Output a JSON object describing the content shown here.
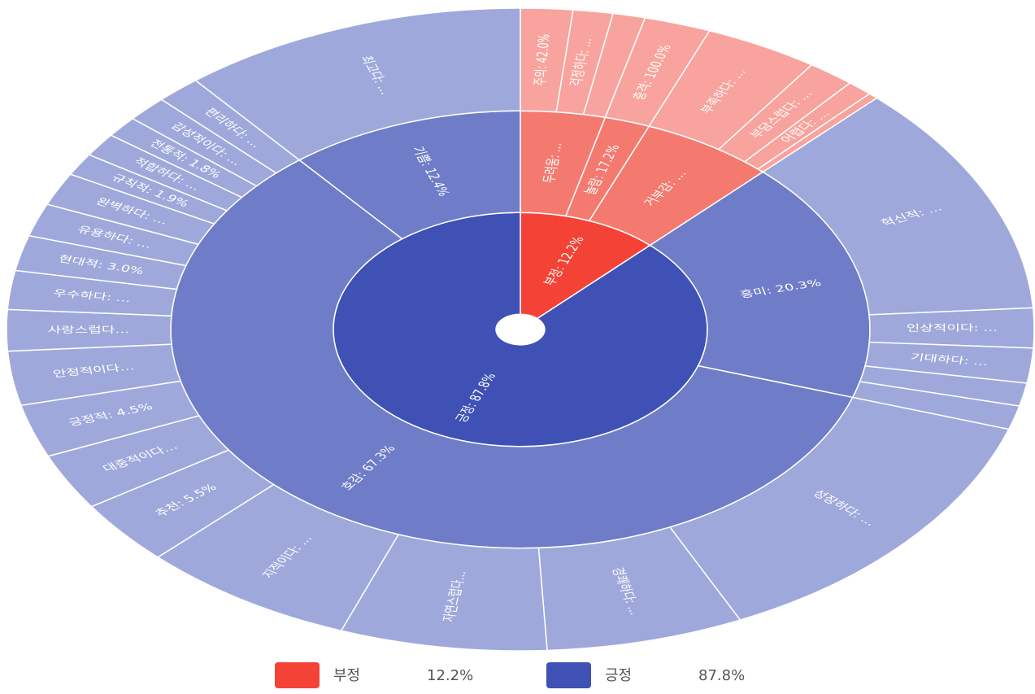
{
  "chart_data": {
    "type": "sunburst",
    "nodes": [
      {
        "name": "부정",
        "value": 12.2,
        "label": "부정: 12.2%",
        "value_label": "12.2%",
        "colors": [
          "#f44336",
          "#f47a70",
          "#f8a39d"
        ],
        "children": [
          {
            "value": 32,
            "label": "두려움: …",
            "children": [
              {
                "value": 42.0,
                "label": "주의: 42.0%"
              },
              {
                "value": 32,
                "label": "걱정하다: …"
              },
              {
                "value": 26,
                "label": null
              }
            ]
          },
          {
            "value": 17.2,
            "label": "놀람: 17.2%",
            "children": [
              {
                "value": 100.0,
                "label": "충격: 100.0%"
              }
            ]
          },
          {
            "value": 50.8,
            "label": "거부감: …",
            "children": [
              {
                "value": 58,
                "label": "부족하다: …"
              },
              {
                "value": 24,
                "label": "부담스럽다: …"
              },
              {
                "value": 13,
                "label": "어렵다: …"
              },
              {
                "value": 5,
                "label": null
              }
            ]
          }
        ]
      },
      {
        "name": "긍정",
        "value": 87.8,
        "label": "긍정: 87.8%",
        "value_label": "87.8%",
        "colors": [
          "#3f51b5",
          "#6f7cc8",
          "#9fa8da"
        ],
        "children": [
          {
            "value": 20.3,
            "label": "흥미: 20.3%",
            "children": [
              {
                "value": 65.8,
                "label": "혁신적: …"
              },
              {
                "value": 11.2,
                "label": "인상적이다: …"
              },
              {
                "value": 9.8,
                "label": "기대하다: …"
              },
              {
                "value": 6.5,
                "label": null
              },
              {
                "value": 6.7,
                "label": null
              }
            ]
          },
          {
            "value": 67.3,
            "label": "호감: 67.3%",
            "children": [
              {
                "value": 21.9,
                "label": "성장하다: …"
              },
              {
                "value": 10.5,
                "label": "경쾌하다: …"
              },
              {
                "value": 11.0,
                "label": "자연스럽다…"
              },
              {
                "value": 11.5,
                "label": "지적이다: …"
              },
              {
                "value": 5.5,
                "label": "추천: 5.5%"
              },
              {
                "value": 4.8,
                "label": "대중적이다…"
              },
              {
                "value": 4.5,
                "label": "긍정적: 4.5%"
              },
              {
                "value": 4.6,
                "label": "안정적이다…"
              },
              {
                "value": 3.5,
                "label": "사랑스럽다…"
              },
              {
                "value": 3.3,
                "label": "우수하다: …"
              },
              {
                "value": 3.0,
                "label": "현대적: 3.0%"
              },
              {
                "value": 2.8,
                "label": "유용하다: …"
              },
              {
                "value": 2.8,
                "label": "완벽하다: …"
              },
              {
                "value": 1.9,
                "label": "규칙적: 1.9%"
              },
              {
                "value": 2.0,
                "label": "적합하다: …"
              },
              {
                "value": 1.8,
                "label": "전통적: 1.8%"
              },
              {
                "value": 2.2,
                "label": "감성적이다: …"
              },
              {
                "value": 2.4,
                "label": "편리하다: …"
              }
            ]
          },
          {
            "value": 12.4,
            "label": "기쁨: 12.4%",
            "children": [
              {
                "value": 100,
                "label": "최고다: …"
              }
            ]
          }
        ]
      }
    ]
  }
}
